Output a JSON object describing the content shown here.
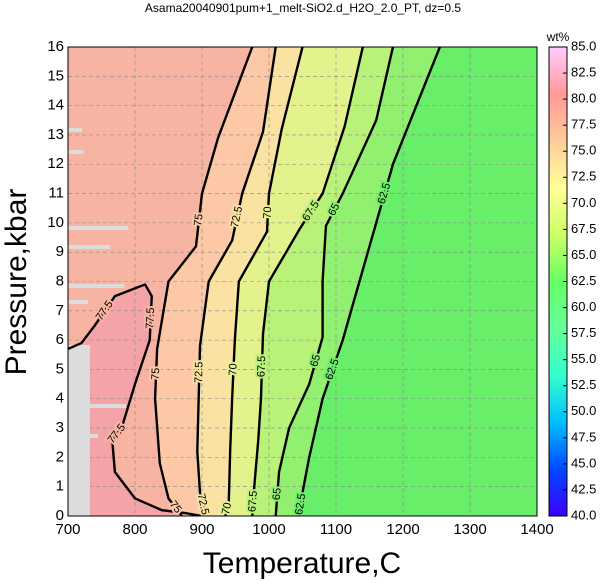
{
  "chart_data": {
    "type": "contour",
    "title": "Asama20040901pum+1_melt-SiO2.d_H2O_2.0_PT, dz=0.5",
    "x_label": "Temperature,C",
    "y_label": "Pressure,kbar",
    "xlim": [
      700,
      1400
    ],
    "ylim": [
      0,
      16
    ],
    "xticks": [
      700,
      800,
      900,
      1000,
      1100,
      1200,
      1300,
      1400
    ],
    "yticks": [
      0,
      1,
      2,
      3,
      4,
      5,
      6,
      7,
      8,
      9,
      10,
      11,
      12,
      13,
      14,
      15,
      16
    ],
    "grid": true,
    "top_color": "#f4a4a8",
    "contours": [
      {
        "level": 77.5,
        "color": "#f8b4a2",
        "x": [
          700,
          720,
          740,
          770,
          815,
          825,
          822,
          800,
          780,
          766,
          770,
          800,
          840,
          875,
          900
        ],
        "y": [
          5.7,
          5.9,
          6.5,
          7.5,
          7.9,
          7.5,
          6,
          4.5,
          3,
          2.6,
          1.5,
          0.6,
          0.2,
          0.1,
          0
        ]
      },
      {
        "level": 75,
        "color": "#fcc8a6",
        "x": [
          975,
          924,
          900,
          891,
          850,
          833,
          830,
          837,
          850,
          870
        ],
        "y": [
          16,
          12.9,
          11,
          9.2,
          8,
          5.7,
          4,
          1.8,
          0.6,
          0
        ]
      },
      {
        "level": 72.5,
        "color": "#f9e2a2",
        "x": [
          1010,
          991,
          960,
          945,
          910,
          897,
          895,
          893,
          897,
          905
        ],
        "y": [
          16,
          13.1,
          11,
          9.4,
          8,
          5.8,
          4,
          2.2,
          0.8,
          0
        ]
      },
      {
        "level": 70,
        "color": "#e4f28e",
        "x": [
          1050,
          1019,
          1000,
          997,
          955,
          949,
          945,
          942,
          940,
          935
        ],
        "y": [
          16,
          13.2,
          11,
          9.7,
          8,
          6,
          4,
          2.2,
          0.5,
          0
        ]
      },
      {
        "level": 67.5,
        "color": "#b8f278",
        "x": [
          1140,
          1113,
          1080,
          1046,
          1000,
          991,
          988,
          984,
          978,
          975
        ],
        "y": [
          16,
          13.3,
          11,
          9.8,
          8,
          6.2,
          4,
          2.6,
          1,
          0
        ]
      },
      {
        "level": 65,
        "color": "#92f070",
        "x": [
          1185,
          1160,
          1110,
          1085,
          1080,
          1080,
          1060,
          1030,
          1015,
          1010
        ],
        "y": [
          16,
          13.5,
          11,
          9.9,
          8,
          6.1,
          4.5,
          3,
          1.5,
          0
        ]
      },
      {
        "level": 62.5,
        "color": "#68ee68",
        "x": [
          1255,
          1220,
          1185,
          1160,
          1135,
          1110,
          1080,
          1060,
          1050,
          1045
        ],
        "y": [
          16,
          14,
          12,
          10,
          8,
          6,
          4,
          2,
          0.8,
          0
        ]
      }
    ],
    "colorbar": {
      "label": "wt%",
      "lim": [
        40,
        85
      ],
      "colors": [
        "#3c00ff",
        "#0048ff",
        "#00c0ff",
        "#33ffcc",
        "#66ff99",
        "#66ff66",
        "#ccff66",
        "#ffff99",
        "#ffcc99",
        "#ff9999",
        "#ffccff"
      ],
      "ticks": [
        {
          "value": 40,
          "label": "40.0"
        },
        42.5,
        {
          "value": 45,
          "label": "45.0"
        },
        47.5,
        {
          "value": 50,
          "label": "50.0"
        },
        52.5,
        {
          "value": 55,
          "label": "55.0"
        },
        57.5,
        {
          "value": 60,
          "label": "60.0"
        },
        62.5,
        {
          "value": 65,
          "label": "65.0"
        },
        67.5,
        {
          "value": 70,
          "label": "70.0"
        },
        72.5,
        {
          "value": 75,
          "label": "75.0"
        },
        77.5,
        {
          "value": 80,
          "label": "80.0"
        },
        82.5,
        {
          "value": 85,
          "label": "85.0"
        }
      ]
    }
  }
}
